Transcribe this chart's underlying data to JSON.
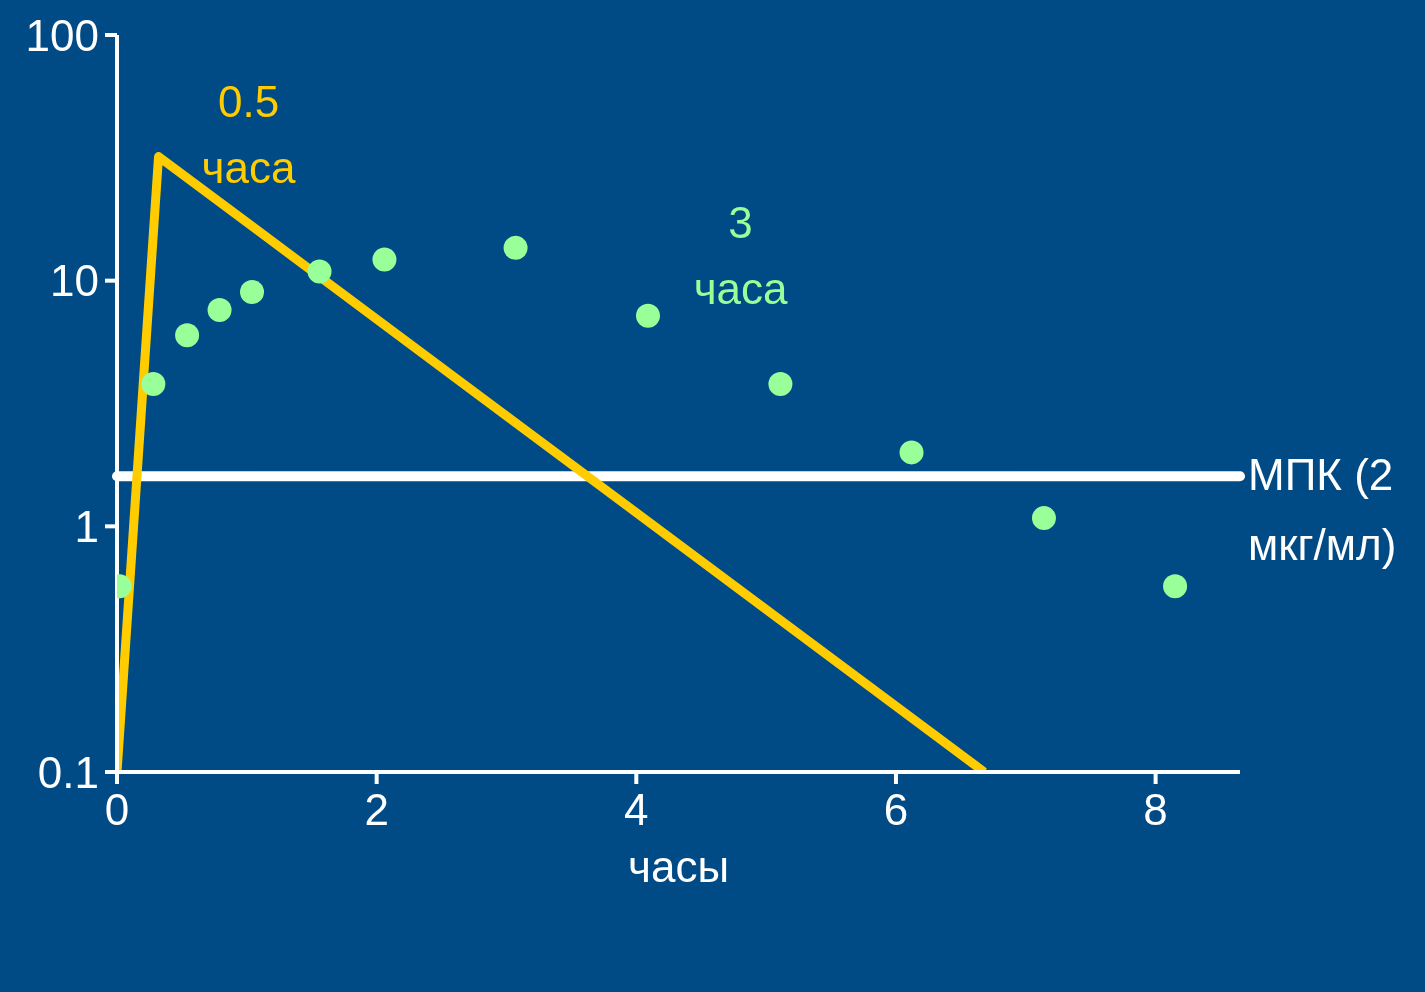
{
  "chart_data": {
    "type": "line",
    "xlabel": "часы",
    "xlim": [
      0,
      8.65
    ],
    "xticks": [
      0,
      2,
      4,
      6,
      8
    ],
    "ylim": [
      0.1,
      100
    ],
    "yticks": [
      0.1,
      1,
      10,
      100
    ],
    "log": "y",
    "grid": false,
    "legend": false,
    "series": [
      {
        "name": "0.5 часа",
        "color": "#ffcc00",
        "marker": "none",
        "x": [
          0,
          0.32,
          6.68
        ],
        "values": [
          0.1,
          32,
          0.1
        ]
      },
      {
        "name": "3 часа",
        "type": "scatter",
        "color": "#99ff99",
        "marker": "circle",
        "x": [
          0.02,
          0.28,
          0.54,
          0.79,
          1.04,
          1.56,
          2.06,
          3.07,
          4.09,
          5.11,
          6.12,
          7.14,
          8.15
        ],
        "values": [
          0.57,
          3.8,
          6.0,
          7.6,
          9.0,
          10.9,
          12.2,
          13.6,
          7.2,
          3.8,
          2.0,
          1.08,
          0.57
        ]
      }
    ],
    "ref_lines": [
      {
        "axis": "y",
        "value": 1.6,
        "label": "МПК (2 мкг/мл)",
        "color": "#ffffff"
      }
    ]
  }
}
